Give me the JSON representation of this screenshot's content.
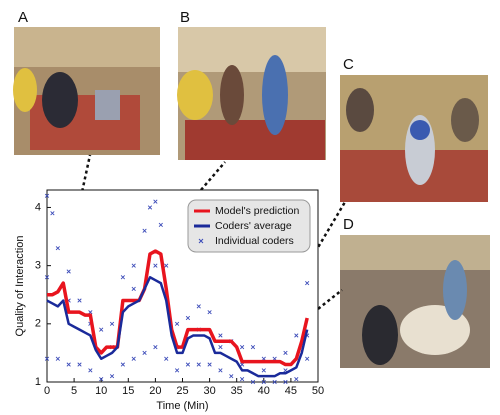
{
  "panels": [
    "A",
    "B",
    "C",
    "D"
  ],
  "chart_data": {
    "type": "line",
    "x_label": "Time (Min)",
    "y_label": "Quality of Interaction",
    "xlim": [
      0,
      50
    ],
    "xticks": [
      0,
      5,
      10,
      15,
      20,
      25,
      30,
      35,
      40,
      45,
      50
    ],
    "ylim": [
      1,
      4.3
    ],
    "yticks": [
      1,
      2,
      3,
      4
    ],
    "legend": "upper right",
    "x": [
      0,
      1,
      2,
      3,
      4,
      5,
      6,
      7,
      8,
      9,
      10,
      11,
      12,
      13,
      14,
      15,
      16,
      17,
      18,
      19,
      20,
      21,
      22,
      23,
      24,
      25,
      26,
      27,
      28,
      29,
      30,
      31,
      32,
      33,
      34,
      35,
      36,
      37,
      38,
      39,
      40,
      41,
      42,
      43,
      44,
      45,
      46,
      47,
      48
    ],
    "series": [
      {
        "name": "Model's prediction",
        "color": "#e8141e",
        "style": "line",
        "values": [
          2.5,
          2.5,
          2.55,
          2.7,
          2.2,
          2.2,
          2.2,
          2.15,
          2.15,
          1.6,
          1.5,
          1.6,
          1.6,
          1.6,
          2.4,
          2.4,
          2.4,
          2.4,
          2.6,
          3.2,
          3.25,
          3.2,
          2.6,
          1.9,
          1.6,
          1.6,
          1.9,
          1.9,
          1.9,
          1.9,
          1.9,
          1.7,
          1.7,
          1.7,
          1.7,
          1.6,
          1.35,
          1.35,
          1.35,
          1.35,
          1.35,
          1.35,
          1.35,
          1.35,
          1.3,
          1.3,
          1.4,
          1.7,
          2.1
        ]
      },
      {
        "name": "Coders' average",
        "color": "#1a2a9a",
        "style": "line",
        "values": [
          2.4,
          2.35,
          2.3,
          2.4,
          2.0,
          1.95,
          1.9,
          1.85,
          1.8,
          1.55,
          1.4,
          1.45,
          1.5,
          1.6,
          2.2,
          2.3,
          2.35,
          2.4,
          2.6,
          2.8,
          2.75,
          2.7,
          2.4,
          1.8,
          1.5,
          1.5,
          1.75,
          1.8,
          1.8,
          1.8,
          1.75,
          1.5,
          1.5,
          1.45,
          1.4,
          1.35,
          1.2,
          1.2,
          1.15,
          1.1,
          1.1,
          1.1,
          1.1,
          1.15,
          1.15,
          1.2,
          1.25,
          1.5,
          1.9
        ]
      },
      {
        "name": "Individual coders",
        "color": "#3a4ab8",
        "style": "scatter",
        "x": [
          0,
          1,
          2,
          4,
          6,
          8,
          10,
          12,
          14,
          16,
          18,
          19,
          20,
          21,
          22,
          24,
          26,
          28,
          30,
          32,
          34,
          36,
          38,
          40,
          42,
          44,
          46,
          48,
          0,
          2,
          4,
          6,
          8,
          10,
          12,
          14,
          16,
          18,
          20,
          22,
          24,
          26,
          28,
          30,
          32,
          34,
          36,
          38,
          40,
          42,
          44,
          46,
          48,
          0,
          4,
          8,
          12,
          16,
          20,
          24,
          28,
          32,
          36,
          40,
          44,
          48
        ],
        "values": [
          4.2,
          3.9,
          3.3,
          2.9,
          2.4,
          2.2,
          1.9,
          2.0,
          2.8,
          3.0,
          3.6,
          4.0,
          4.1,
          3.7,
          3.0,
          2.0,
          2.1,
          2.3,
          2.2,
          1.8,
          1.7,
          1.6,
          1.6,
          1.4,
          1.4,
          1.5,
          1.8,
          2.7,
          1.4,
          1.4,
          1.3,
          1.3,
          1.2,
          1.05,
          1.1,
          1.3,
          1.4,
          1.5,
          1.6,
          1.4,
          1.2,
          1.3,
          1.3,
          1.3,
          1.2,
          1.1,
          1.05,
          1.0,
          1.0,
          1.0,
          1.0,
          1.05,
          1.4,
          2.8,
          2.4,
          2.0,
          1.6,
          2.6,
          3.0,
          1.6,
          1.9,
          1.6,
          1.3,
          1.2,
          1.2,
          1.8
        ]
      }
    ]
  }
}
